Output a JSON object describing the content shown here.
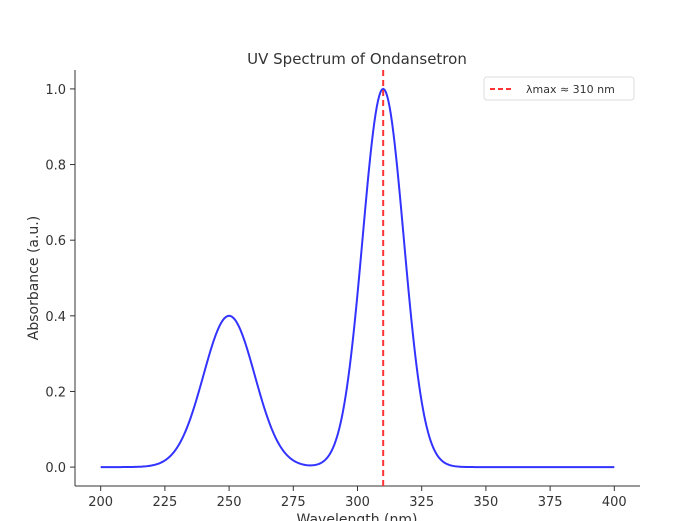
{
  "chart_data": {
    "type": "line",
    "title": "UV Spectrum of Ondansetron",
    "xlabel": "Wavelength (nm)",
    "ylabel": "Absorbance (a.u.)",
    "xlim": [
      190,
      410
    ],
    "ylim": [
      -0.05,
      1.05
    ],
    "xticks": [
      200,
      225,
      250,
      275,
      300,
      325,
      350,
      375,
      400
    ],
    "xtick_labels": [
      "200",
      "225",
      "250",
      "275",
      "300",
      "325",
      "350",
      "375",
      "400"
    ],
    "yticks": [
      0.0,
      0.2,
      0.4,
      0.6,
      0.8,
      1.0
    ],
    "ytick_labels": [
      "0.0",
      "0.2",
      "0.4",
      "0.6",
      "0.8",
      "1.0"
    ],
    "grid": false,
    "series": [
      {
        "name": "Absorbance",
        "color": "#3333ff",
        "model": "sum of gaussians",
        "x_range": [
          200,
          400
        ],
        "peaks": [
          {
            "center": 250,
            "amplitude": 0.4,
            "sigma": 10
          },
          {
            "center": 310,
            "amplitude": 1.0,
            "sigma": 8
          }
        ]
      }
    ],
    "annotations": [
      {
        "type": "vline",
        "x": 310,
        "color": "#ff3333",
        "style": "dashed",
        "label": "λmax ≈ 310 nm"
      }
    ],
    "legend": {
      "placement": "top-right",
      "entries": [
        "λmax ≈ 310 nm"
      ]
    }
  }
}
